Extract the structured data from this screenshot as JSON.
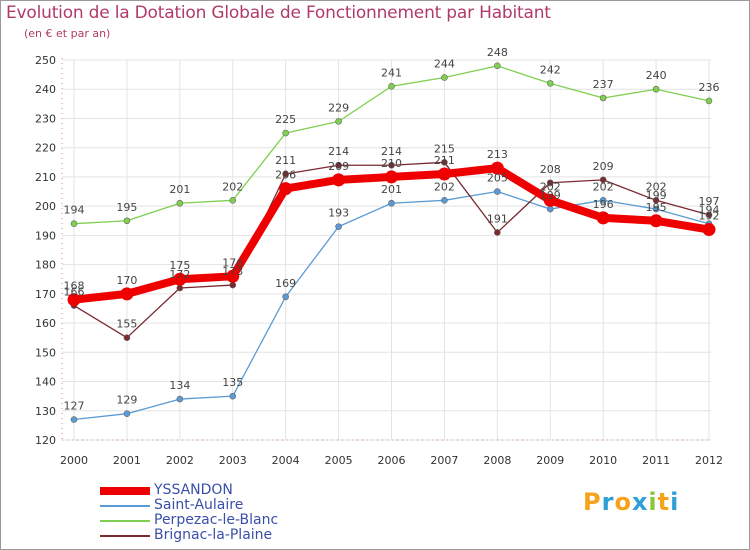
{
  "chart_data": {
    "type": "line",
    "title": "Evolution de la Dotation Globale de Fonctionnement par Habitant",
    "subtitle": "(en € et par an)",
    "categories": [
      "2000",
      "2001",
      "2002",
      "2003",
      "2004",
      "2005",
      "2006",
      "2007",
      "2008",
      "2009",
      "2010",
      "2011",
      "2012"
    ],
    "yticks": [
      120,
      130,
      140,
      150,
      160,
      170,
      180,
      190,
      200,
      210,
      220,
      230,
      240,
      250
    ],
    "ylim": [
      120,
      250
    ],
    "grid": true,
    "series": [
      {
        "name": "YSSANDON",
        "color": "#ee0000",
        "values": [
          168,
          170,
          175,
          176,
          206,
          209,
          210,
          211,
          213,
          202,
          196,
          195,
          192
        ],
        "labels": [
          "168",
          "170",
          "175",
          "176",
          "206",
          "209",
          "210",
          "211",
          "213",
          "202",
          "196",
          "195",
          "192"
        ]
      },
      {
        "name": "Saint-Aulaire",
        "color": "#5b9bd5",
        "values": [
          127,
          129,
          134,
          135,
          169,
          193,
          201,
          202,
          205,
          199,
          202,
          199,
          194
        ],
        "labels": [
          "127",
          "129",
          "134",
          "135",
          "169",
          "193",
          "201",
          "202",
          "205",
          "199",
          "202",
          "199",
          "194"
        ]
      },
      {
        "name": "Perpezac-le-Blanc",
        "color": "#7fd050",
        "values": [
          194,
          195,
          201,
          202,
          225,
          229,
          241,
          244,
          248,
          242,
          237,
          240,
          236
        ],
        "labels": [
          "194",
          "195",
          "201",
          "202",
          "225",
          "229",
          "241",
          "244",
          "248",
          "242",
          "237",
          "240",
          "236"
        ]
      },
      {
        "name": "Brignac-la-Plaine",
        "color": "#7a2a30",
        "values": [
          166,
          155,
          172,
          173,
          211,
          214,
          214,
          215,
          191,
          208,
          209,
          202,
          197
        ],
        "labels": [
          "166",
          "155",
          "172",
          "173",
          "211",
          "214",
          "214",
          "215",
          "191",
          "208",
          "209",
          "202",
          "197"
        ]
      }
    ]
  },
  "brand": {
    "letters": [
      "P",
      "r",
      "o",
      "x",
      "i",
      "t",
      "i"
    ],
    "colors": [
      "#f7a21b",
      "#2f9fd8",
      "#f7a21b",
      "#2f9fd8",
      "#8cc63f",
      "#f7a21b",
      "#2f9fd8"
    ]
  }
}
